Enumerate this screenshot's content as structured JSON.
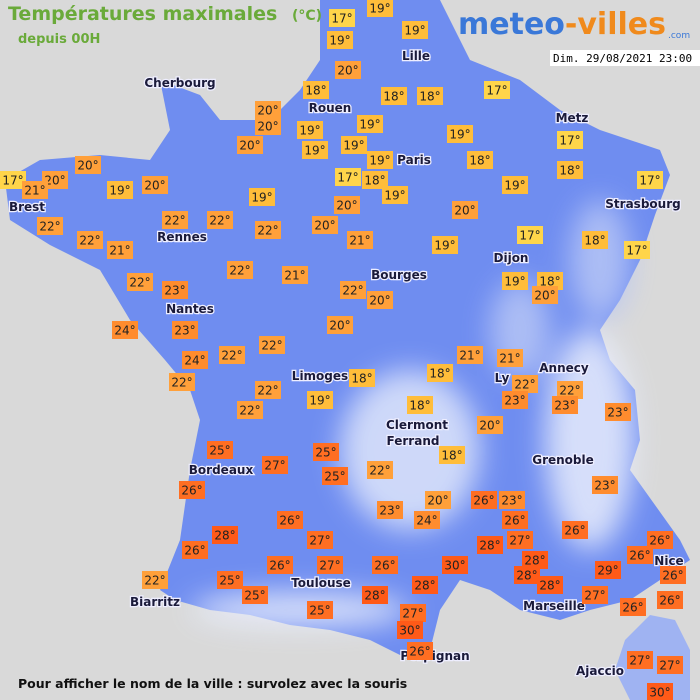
{
  "header": {
    "title": "Températures maximales",
    "unit": "(°C)",
    "subtitle": "depuis 00H"
  },
  "logo": {
    "part1": "meteo",
    "part2": "-villes",
    "suffix": ".com"
  },
  "timestamp": "Dim. 29/08/2021 23:00",
  "cities": [
    "Cherbourg",
    "Lille",
    "Rouen",
    "Paris",
    "Metz",
    "Brest",
    "Rennes",
    "Strasbourg",
    "Bourges",
    "Dijon",
    "Nantes",
    "Annecy",
    "Limoges",
    "Ly",
    "Clermont",
    "Ferrand",
    "Grenoble",
    "Bordeaux",
    "Toulouse",
    "Nice",
    "Biarritz",
    "Marseille",
    "Perpignan",
    "Ajaccio"
  ],
  "temperatures": [
    "17°",
    "19°",
    "19°",
    "19°",
    "20°",
    "18°",
    "18°",
    "18°",
    "17°",
    "20°",
    "20°",
    "19°",
    "19°",
    "19°",
    "19°",
    "19°",
    "17°",
    "19°",
    "18°",
    "18°",
    "17°",
    "20°",
    "20°",
    "21°",
    "19°",
    "20°",
    "20°",
    "17°",
    "18°",
    "19°",
    "19°",
    "17°",
    "19°",
    "20°",
    "20°",
    "22°",
    "22°",
    "22°",
    "22°",
    "20°",
    "21°",
    "17°",
    "18°",
    "17°",
    "22°",
    "21°",
    "19°",
    "22°",
    "21°",
    "22°",
    "23°",
    "18°",
    "19°",
    "20°",
    "22°",
    "20°",
    "24°",
    "23°",
    "20°",
    "22°",
    "22°",
    "24°",
    "21°",
    "21°",
    "18°",
    "18°",
    "22°",
    "22°",
    "22°",
    "22°",
    "19°",
    "23°",
    "23°",
    "18°",
    "22°",
    "23°",
    "20°",
    "18°",
    "25°",
    "25°",
    "27°",
    "22°",
    "25°",
    "26°",
    "23°",
    "20°",
    "26°",
    "23°",
    "23°",
    "24°",
    "26°",
    "26°",
    "26°",
    "28°",
    "27°",
    "27°",
    "28°",
    "26°",
    "26°",
    "26°",
    "28°",
    "30°",
    "26°",
    "27°",
    "26°",
    "26°",
    "28°",
    "29°",
    "22°",
    "25°",
    "28°",
    "28°",
    "27°",
    "25°",
    "28°",
    "26°",
    "26°",
    "25°",
    "27°",
    "30°",
    "26°",
    "27°",
    "27°",
    "30°"
  ],
  "footer": "Pour afficher le nom de la ville : survolez avec la souris"
}
